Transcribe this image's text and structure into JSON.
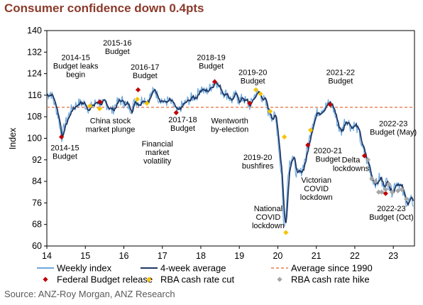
{
  "title": "Consumer confidence down 0.4pts",
  "source": "Source: ANZ-Roy Morgan, ANZ Research",
  "chart_data": {
    "type": "line",
    "ylabel": "Index",
    "ylim": [
      60,
      140
    ],
    "yticks": [
      60,
      68,
      76,
      84,
      92,
      100,
      108,
      116,
      124,
      132,
      140
    ],
    "xlim": [
      2014,
      2023.55
    ],
    "xticks": [
      {
        "value": 2014,
        "label": "14"
      },
      {
        "value": 2015,
        "label": "15"
      },
      {
        "value": 2016,
        "label": "16"
      },
      {
        "value": 2017,
        "label": "17"
      },
      {
        "value": 2018,
        "label": "18"
      },
      {
        "value": 2019,
        "label": "19"
      },
      {
        "value": 2020,
        "label": "20"
      },
      {
        "value": 2021,
        "label": "21"
      },
      {
        "value": 2022,
        "label": "22"
      },
      {
        "value": 2023,
        "label": "23"
      }
    ],
    "average_since_1990": 111.5,
    "colors": {
      "weekly": "#6FA8DC",
      "avg4": "#1F3864",
      "average": "#E97B4E",
      "budget": "#C00000",
      "cut": "#F5C400",
      "hike": "#A6A6A6"
    },
    "weekly_anchors": [
      [
        2014.0,
        116
      ],
      [
        2014.1,
        117
      ],
      [
        2014.15,
        115
      ],
      [
        2014.22,
        112
      ],
      [
        2014.3,
        108
      ],
      [
        2014.38,
        100
      ],
      [
        2014.45,
        104
      ],
      [
        2014.55,
        108
      ],
      [
        2014.65,
        111
      ],
      [
        2014.8,
        113
      ],
      [
        2014.95,
        113
      ],
      [
        2015.1,
        111
      ],
      [
        2015.25,
        113
      ],
      [
        2015.33,
        114
      ],
      [
        2015.4,
        112
      ],
      [
        2015.5,
        113
      ],
      [
        2015.6,
        112
      ],
      [
        2015.7,
        110
      ],
      [
        2015.8,
        113
      ],
      [
        2015.95,
        114
      ],
      [
        2016.1,
        112
      ],
      [
        2016.2,
        111
      ],
      [
        2016.3,
        114
      ],
      [
        2016.4,
        113
      ],
      [
        2016.5,
        115
      ],
      [
        2016.6,
        114
      ],
      [
        2016.7,
        116
      ],
      [
        2016.8,
        118
      ],
      [
        2016.9,
        115
      ],
      [
        2016.95,
        115
      ],
      [
        2017.05,
        113
      ],
      [
        2017.15,
        114
      ],
      [
        2017.3,
        112
      ],
      [
        2017.38,
        109
      ],
      [
        2017.5,
        112
      ],
      [
        2017.6,
        113
      ],
      [
        2017.75,
        115
      ],
      [
        2017.9,
        116
      ],
      [
        2018.0,
        119
      ],
      [
        2018.1,
        117
      ],
      [
        2018.2,
        118
      ],
      [
        2018.3,
        120
      ],
      [
        2018.38,
        122
      ],
      [
        2018.5,
        118
      ],
      [
        2018.6,
        117
      ],
      [
        2018.7,
        116
      ],
      [
        2018.8,
        114
      ],
      [
        2018.9,
        116
      ],
      [
        2019.0,
        114
      ],
      [
        2019.1,
        115
      ],
      [
        2019.2,
        113
      ],
      [
        2019.28,
        112
      ],
      [
        2019.36,
        115
      ],
      [
        2019.45,
        117
      ],
      [
        2019.55,
        116
      ],
      [
        2019.65,
        114
      ],
      [
        2019.75,
        110
      ],
      [
        2019.85,
        108
      ],
      [
        2019.93,
        108
      ],
      [
        2020.0,
        101
      ],
      [
        2020.05,
        92
      ],
      [
        2020.1,
        86
      ],
      [
        2020.13,
        75
      ],
      [
        2020.16,
        65
      ],
      [
        2020.2,
        70
      ],
      [
        2020.25,
        84
      ],
      [
        2020.3,
        91
      ],
      [
        2020.38,
        94
      ],
      [
        2020.46,
        88
      ],
      [
        2020.55,
        86
      ],
      [
        2020.62,
        88
      ],
      [
        2020.72,
        93
      ],
      [
        2020.8,
        98
      ],
      [
        2020.88,
        105
      ],
      [
        2020.95,
        108
      ],
      [
        2021.05,
        110
      ],
      [
        2021.15,
        111
      ],
      [
        2021.25,
        112
      ],
      [
        2021.35,
        113
      ],
      [
        2021.42,
        112
      ],
      [
        2021.5,
        108
      ],
      [
        2021.58,
        104
      ],
      [
        2021.65,
        102
      ],
      [
        2021.72,
        106
      ],
      [
        2021.8,
        107
      ],
      [
        2021.9,
        104
      ],
      [
        2021.98,
        105
      ],
      [
        2022.05,
        104
      ],
      [
        2022.12,
        101
      ],
      [
        2022.2,
        96
      ],
      [
        2022.28,
        93
      ],
      [
        2022.35,
        90
      ],
      [
        2022.42,
        86
      ],
      [
        2022.5,
        84
      ],
      [
        2022.58,
        83
      ],
      [
        2022.65,
        86
      ],
      [
        2022.72,
        82
      ],
      [
        2022.8,
        84
      ],
      [
        2022.88,
        83
      ],
      [
        2022.96,
        80
      ],
      [
        2023.04,
        83
      ],
      [
        2023.12,
        84
      ],
      [
        2023.2,
        82
      ],
      [
        2023.28,
        78
      ],
      [
        2023.36,
        76
      ],
      [
        2023.45,
        77
      ],
      [
        2023.52,
        76
      ]
    ],
    "budget_releases": [
      [
        2014.38,
        100.5
      ],
      [
        2015.38,
        113.5
      ],
      [
        2016.37,
        118
      ],
      [
        2017.36,
        109.5
      ],
      [
        2018.36,
        121
      ],
      [
        2019.27,
        113
      ],
      [
        2020.78,
        97.5
      ],
      [
        2021.36,
        112.5
      ],
      [
        2022.25,
        93.5
      ],
      [
        2022.8,
        79.5
      ]
    ],
    "rba_cuts": [
      [
        2015.12,
        112
      ],
      [
        2015.37,
        111
      ],
      [
        2016.35,
        114.5
      ],
      [
        2016.6,
        113
      ],
      [
        2019.43,
        118
      ],
      [
        2019.55,
        116.5
      ],
      [
        2019.8,
        110
      ],
      [
        2020.17,
        100.5
      ],
      [
        2020.21,
        65
      ],
      [
        2020.85,
        103
      ]
    ],
    "rba_hikes": [
      [
        2022.34,
        92
      ],
      [
        2022.44,
        85
      ],
      [
        2022.54,
        84
      ],
      [
        2022.62,
        80
      ],
      [
        2022.7,
        80
      ],
      [
        2022.8,
        81
      ],
      [
        2022.88,
        83
      ],
      [
        2022.97,
        80
      ],
      [
        2023.12,
        80.5
      ],
      [
        2023.22,
        81
      ],
      [
        2023.34,
        77.5
      ]
    ],
    "annotations": [
      {
        "lines": [
          "2014-15",
          "Budget leaks",
          "begin"
        ],
        "at": [
          2014.75,
          129
        ]
      },
      {
        "lines": [
          "2015-16",
          "Budget"
        ],
        "at": [
          2015.83,
          134.5
        ]
      },
      {
        "lines": [
          "2016-17",
          "Budget"
        ],
        "at": [
          2016.55,
          125.5
        ]
      },
      {
        "lines": [
          "2018-19",
          "Budget"
        ],
        "at": [
          2018.27,
          129
        ]
      },
      {
        "lines": [
          "2019-20",
          "Budget"
        ],
        "at": [
          2019.35,
          123.5
        ]
      },
      {
        "lines": [
          "2021-22",
          "Budget"
        ],
        "at": [
          2021.63,
          123.5
        ]
      },
      {
        "lines": [
          "2022-23",
          "Budget (May)"
        ],
        "at": [
          2023.0,
          104.5
        ]
      },
      {
        "lines": [
          "China stock",
          "market plunge"
        ],
        "at": [
          2015.65,
          105.5
        ]
      },
      {
        "lines": [
          "2014-15",
          "Budget"
        ],
        "at": [
          2014.47,
          95.5
        ]
      },
      {
        "lines": [
          "Financial",
          "market",
          "volatility"
        ],
        "at": [
          2016.87,
          97
        ]
      },
      {
        "lines": [
          "2017-18",
          "Budget"
        ],
        "at": [
          2017.53,
          106
        ]
      },
      {
        "lines": [
          "Wentworth",
          "by-election"
        ],
        "at": [
          2018.75,
          105.5
        ]
      },
      {
        "lines": [
          "2019-20",
          "bushfires"
        ],
        "at": [
          2019.48,
          92
        ]
      },
      {
        "lines": [
          "2020-21",
          "Budget"
        ],
        "at": [
          2021.3,
          94.5
        ]
      },
      {
        "lines": [
          "Delta",
          "lockdowns"
        ],
        "at": [
          2021.9,
          91
        ]
      },
      {
        "lines": [
          "Victorian",
          "COVID",
          "lockdown"
        ],
        "at": [
          2021.0,
          83.5
        ]
      },
      {
        "lines": [
          "National",
          "COVID",
          "lockdown"
        ],
        "at": [
          2019.75,
          73
        ]
      },
      {
        "lines": [
          "2022-23",
          "Budget (Oct)"
        ],
        "at": [
          2022.95,
          73
        ]
      }
    ],
    "legend": [
      {
        "kind": "line",
        "color": "#6FA8DC",
        "label": "Weekly index"
      },
      {
        "kind": "line",
        "color": "#1F3864",
        "label": "4-week average"
      },
      {
        "kind": "dash",
        "color": "#E97B4E",
        "label": "Average since 1990"
      },
      {
        "kind": "diamond",
        "color": "#C00000",
        "label": "Federal Budget release"
      },
      {
        "kind": "diamond",
        "color": "#F5C400",
        "label": "RBA cash rate cut"
      },
      {
        "kind": "diamond",
        "color": "#A6A6A6",
        "label": "RBA cash rate hike"
      }
    ]
  }
}
